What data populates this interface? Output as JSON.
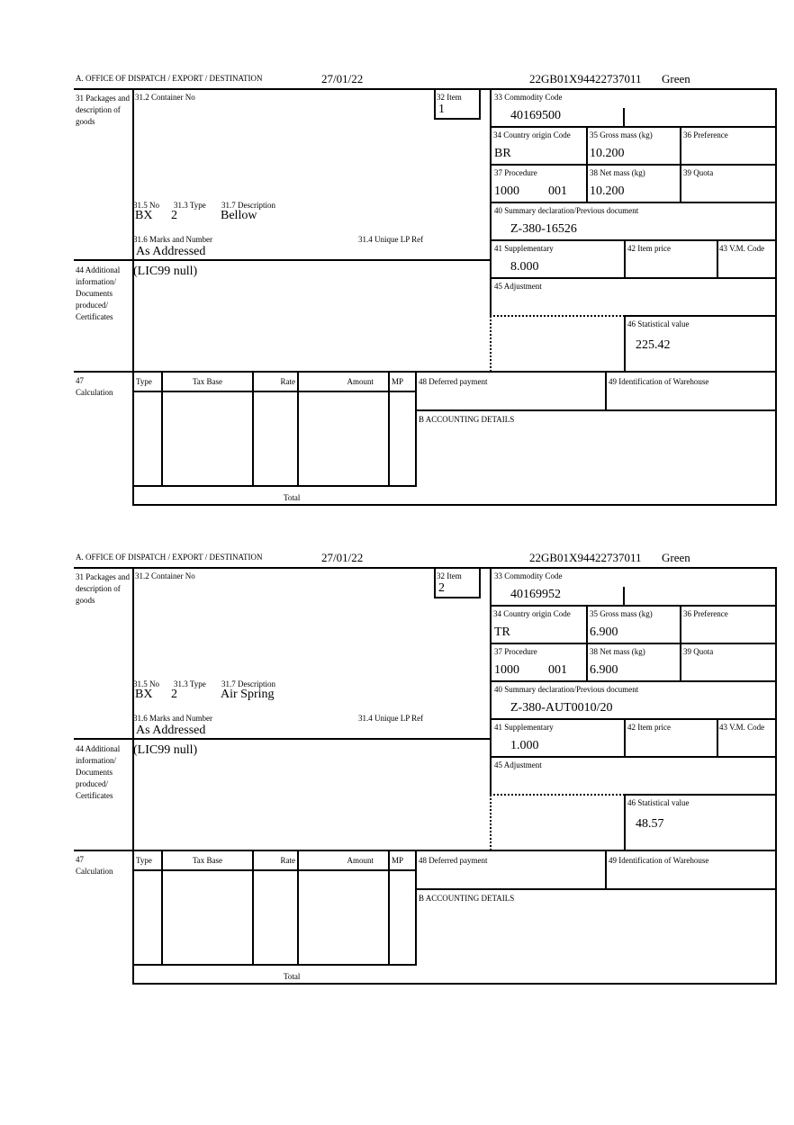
{
  "labels": {
    "office": "A.  OFFICE OF DISPATCH / EXPORT / DESTINATION",
    "packages": "31 Packages and description of goods",
    "container_no": "31.2 Container No",
    "item": "32 Item",
    "commodity_code": "33 Commodity Code",
    "country_origin": "34 Country origin Code",
    "gross_mass": "35 Gross mass (kg)",
    "preference": "36 Preference",
    "procedure": "37 Procedure",
    "net_mass": "38 Net mass (kg)",
    "quota": "39 Quota",
    "summary_declaration": "40 Summary declaration/Previous document",
    "supplementary": "41 Supplementary",
    "item_price": "42 Item price",
    "vm_code": "43 V.M. Code",
    "adjustment": "45 Adjustment",
    "statistical_value": "46 Statistical value",
    "no": "31.5 No",
    "type": "31.3 Type",
    "description": "31.7 Description",
    "marks": "31.6 Marks and Number",
    "unique_lp_ref": "31.4 Unique LP Ref",
    "additional_info": "44 Additional information/ Documents produced/ Certificates",
    "calculation": "47 Calculation",
    "calc_type": "Type",
    "calc_tax_base": "Tax Base",
    "calc_rate": "Rate",
    "calc_amount": "Amount",
    "calc_mp": "MP",
    "total": "Total",
    "deferred_payment": "48 Deferred payment",
    "warehouse": "49 Identification of Warehouse",
    "accounting": "B ACCOUNTING DETAILS"
  },
  "forms": [
    {
      "date": "27/01/22",
      "reference": "22GB01X94422737011",
      "route": "Green",
      "item": "1",
      "commodity_code": "40169500",
      "country_origin": "BR",
      "gross_mass": "10.200",
      "procedure_code": "1000",
      "procedure_suffix": "001",
      "net_mass": "10.200",
      "previous_document": "Z-380-16526",
      "supplementary": "8.000",
      "statistical_value": "225.42",
      "package_kind": "BX",
      "package_count": "2",
      "description": "Bellow",
      "marks": "As Addressed",
      "additional_info": "(LIC99 null)"
    },
    {
      "date": "27/01/22",
      "reference": "22GB01X94422737011",
      "route": "Green",
      "item": "2",
      "commodity_code": "40169952",
      "country_origin": "TR",
      "gross_mass": "6.900",
      "procedure_code": "1000",
      "procedure_suffix": "001",
      "net_mass": "6.900",
      "previous_document": "Z-380-AUT0010/20",
      "supplementary": "1.000",
      "statistical_value": "48.57",
      "package_kind": "BX",
      "package_count": "2",
      "description": "Air Spring",
      "marks": "As Addressed",
      "additional_info": "(LIC99 null)"
    }
  ]
}
